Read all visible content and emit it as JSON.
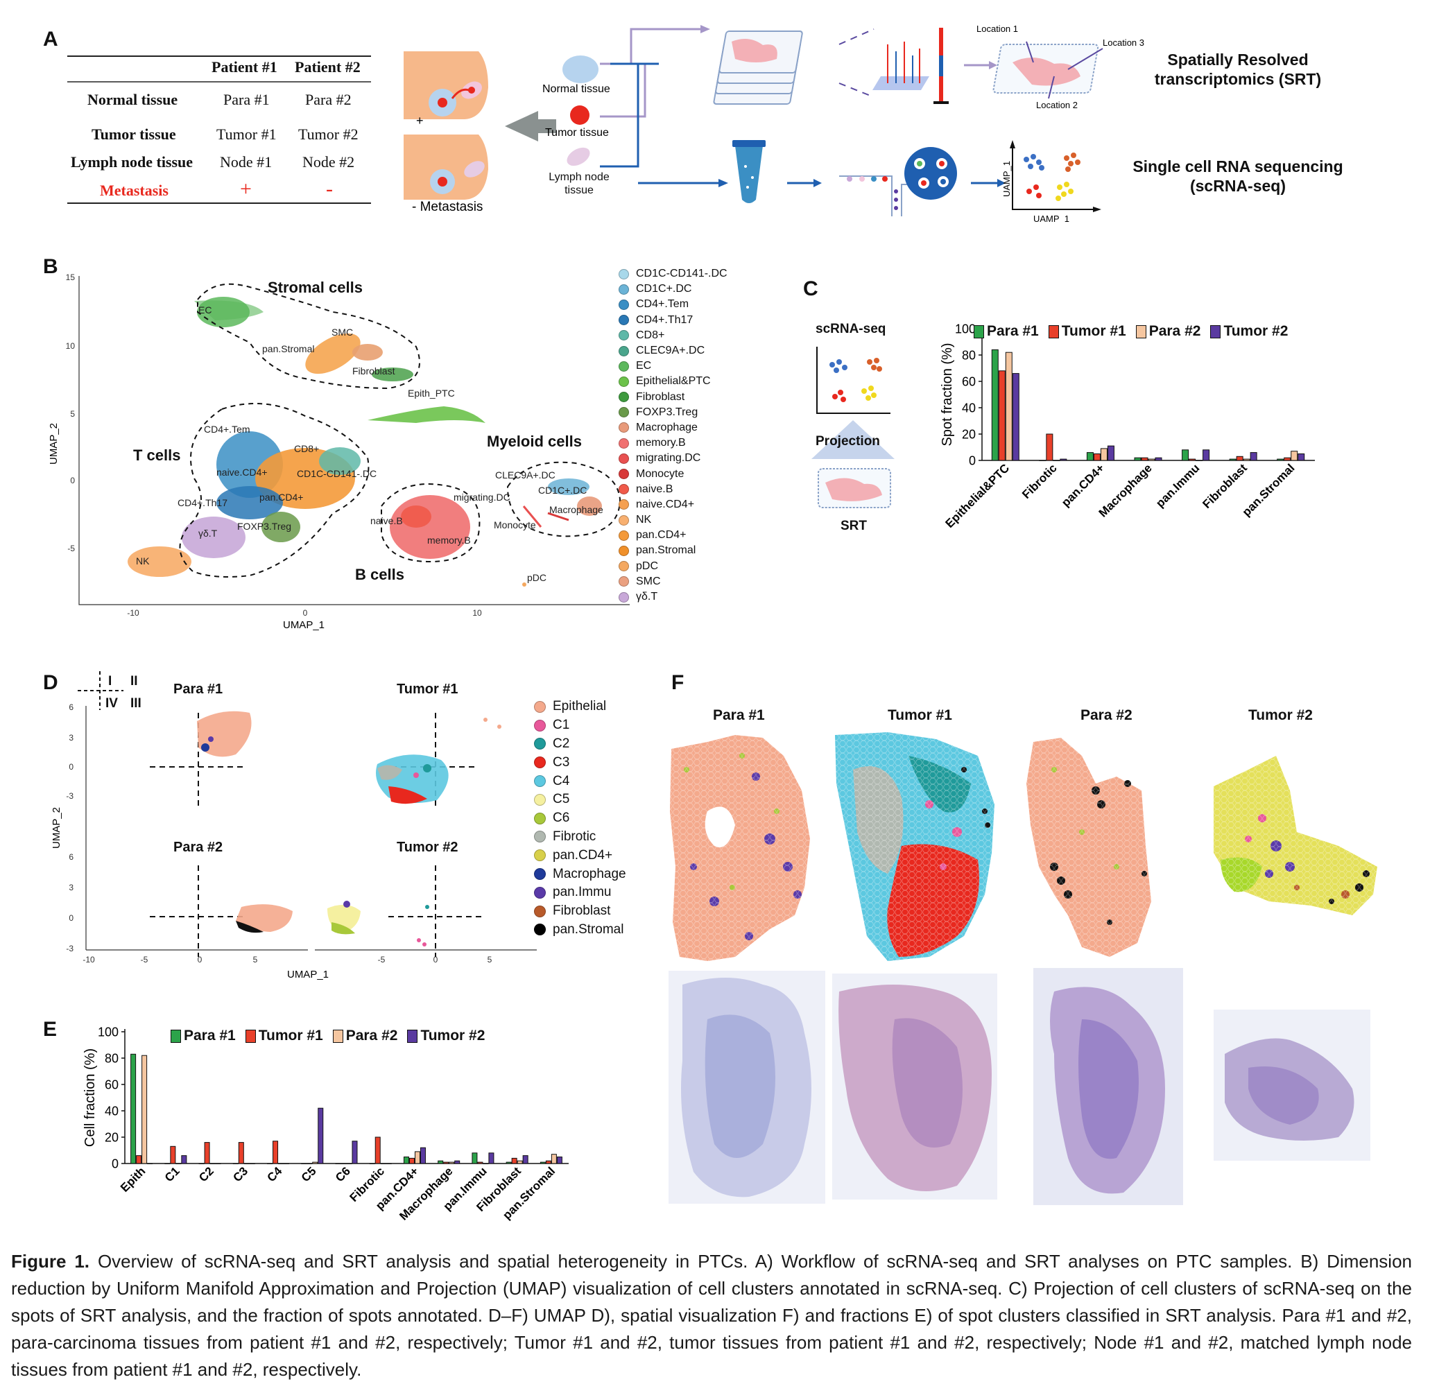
{
  "panelA": {
    "letter": "A",
    "table": {
      "headers": [
        "",
        "Patient #1",
        "Patient #2"
      ],
      "rows": [
        {
          "label": "Normal tissue",
          "p1": "Para #1",
          "p2": "Para #2"
        },
        {
          "label": "Tumor tissue",
          "p1": "Tumor #1",
          "p2": "Tumor #2"
        },
        {
          "label": "Lymph node tissue",
          "p1": "Node #1",
          "p2": "Node #2"
        },
        {
          "label": "Metastasis",
          "p1": "+",
          "p2": "-"
        }
      ]
    },
    "schematic": {
      "plus": "+",
      "minus_metastasis": "- Metastasis",
      "normal": "Normal tissue",
      "tumor": "Tumor tissue",
      "lymph": "Lymph node tissue",
      "loc1": "Location 1",
      "loc2": "Location 2",
      "loc3": "Location 3",
      "uamp1": "UAMP_1",
      "uamp1_y": "UAMP_1",
      "srt_title": "Spatially Resolved transcriptomics (SRT)",
      "sc_title": "Single cell RNA sequencing (scRNA-seq)"
    }
  },
  "panelB": {
    "letter": "B",
    "xlabel": "UMAP_1",
    "ylabel": "UMAP_2",
    "xticks": [
      "-10",
      "0",
      "10"
    ],
    "yticks": [
      "15",
      "10",
      "5",
      "0",
      "-5"
    ],
    "groups": [
      "Stromal cells",
      "T cells",
      "Myeloid cells",
      "B cells"
    ],
    "cluster_labels": [
      "EC",
      "SMC",
      "pan.Stromal",
      "Fibroblast",
      "Epith_PTC",
      "CD4+.Tem",
      "CD8+",
      "naive.CD4+",
      "CD1C-CD141-.DC",
      "CD4+.Th17",
      "pan.CD4+",
      "γδ.T",
      "FOXP3.Treg",
      "NK",
      "naive.B",
      "memory.B",
      "migrating.DC",
      "CLEC9A+.DC",
      "CD1C+.DC",
      "Macrophage",
      "Monocyte",
      "pDC"
    ],
    "legend": [
      {
        "name": "CD1C-CD141-.DC",
        "color": "#a8d8ea"
      },
      {
        "name": "CD1C+.DC",
        "color": "#6bb3d6"
      },
      {
        "name": "CD4+.Tem",
        "color": "#3b8fc4"
      },
      {
        "name": "CD4+.Th17",
        "color": "#2a78b5"
      },
      {
        "name": "CD8+",
        "color": "#5fb8a8"
      },
      {
        "name": "CLEC9A+.DC",
        "color": "#4aa58c"
      },
      {
        "name": "EC",
        "color": "#5cb85c"
      },
      {
        "name": "Epithelial&PTC",
        "color": "#6cc24a"
      },
      {
        "name": "Fibroblast",
        "color": "#3e9a3e"
      },
      {
        "name": "FOXP3.Treg",
        "color": "#6a9a4a"
      },
      {
        "name": "Macrophage",
        "color": "#e89a7a"
      },
      {
        "name": "memory.B",
        "color": "#f07070"
      },
      {
        "name": "migrating.DC",
        "color": "#e85050"
      },
      {
        "name": "Monocyte",
        "color": "#d83a3a"
      },
      {
        "name": "naive.B",
        "color": "#f05a4a"
      },
      {
        "name": "naive.CD4+",
        "color": "#f5a050"
      },
      {
        "name": "NK",
        "color": "#f8b070"
      },
      {
        "name": "pan.CD4+",
        "color": "#f49a3a"
      },
      {
        "name": "pan.Stromal",
        "color": "#f0902a"
      },
      {
        "name": "pDC",
        "color": "#f4a860"
      },
      {
        "name": "SMC",
        "color": "#eaa080"
      },
      {
        "name": "γδ.T",
        "color": "#c8a8d8"
      }
    ]
  },
  "panelC": {
    "letter": "C",
    "scrna": "scRNA-seq",
    "projection": "Projection",
    "srt": "SRT",
    "chart_data": {
      "type": "bar",
      "ylabel": "Spot fraction (%)",
      "ylim": [
        0,
        100
      ],
      "yticks": [
        0,
        20,
        40,
        60,
        80,
        100
      ],
      "categories": [
        "Epithelial&PTC",
        "Fibrotic",
        "pan.CD4+",
        "Macrophage",
        "pan.Immu",
        "Fibroblast",
        "pan.Stromal"
      ],
      "series": [
        {
          "name": "Para #1",
          "color": "#2ca34a",
          "values": [
            84,
            0,
            6,
            2,
            8,
            1,
            1
          ]
        },
        {
          "name": "Tumor #1",
          "color": "#e8402a",
          "values": [
            68,
            20,
            5,
            2,
            1,
            3,
            2
          ]
        },
        {
          "name": "Para #2",
          "color": "#f5c6a0",
          "values": [
            82,
            0,
            9,
            1,
            0,
            1,
            7
          ]
        },
        {
          "name": "Tumor #2",
          "color": "#5a3aa0",
          "values": [
            66,
            1,
            11,
            2,
            8,
            6,
            5
          ]
        }
      ]
    }
  },
  "panelD": {
    "letter": "D",
    "quad": [
      "I",
      "II",
      "IV",
      "III"
    ],
    "titles": [
      "Para #1",
      "Tumor #1",
      "Para #2",
      "Tumor #2"
    ],
    "xlabel": "UMAP_1",
    "ylabel": "UMAP_2",
    "yticks": [
      "6",
      "3",
      "0",
      "-3"
    ],
    "xticks": [
      "-10",
      "-5",
      "0",
      "5",
      "-5",
      "0",
      "5"
    ],
    "legend": [
      {
        "name": "Epithelial",
        "color": "#f4a98c"
      },
      {
        "name": "C1",
        "color": "#e8589a"
      },
      {
        "name": "C2",
        "color": "#1f9a9a"
      },
      {
        "name": "C3",
        "color": "#e8281e"
      },
      {
        "name": "C4",
        "color": "#5cc8e0"
      },
      {
        "name": "C5",
        "color": "#f5f0a0"
      },
      {
        "name": "C6",
        "color": "#a8c83a"
      },
      {
        "name": "Fibrotic",
        "color": "#b0b8b0"
      },
      {
        "name": "pan.CD4+",
        "color": "#d8d04a"
      },
      {
        "name": "Macrophage",
        "color": "#1f3a9a"
      },
      {
        "name": "pan.Immu",
        "color": "#5a3aa8"
      },
      {
        "name": "Fibroblast",
        "color": "#b85a2a"
      },
      {
        "name": "pan.Stromal",
        "color": "#000000"
      }
    ]
  },
  "panelE": {
    "letter": "E",
    "chart_data": {
      "type": "bar",
      "ylabel": "Cell fraction (%)",
      "ylim": [
        0,
        100
      ],
      "yticks": [
        0,
        20,
        40,
        60,
        80,
        100
      ],
      "categories": [
        "Epith",
        "C1",
        "C2",
        "C3",
        "C4",
        "C5",
        "C6",
        "Fibrotic",
        "pan.CD4+",
        "Macrophage",
        "pan.Immu",
        "Fibroblast",
        "pan.Stromal"
      ],
      "series": [
        {
          "name": "Para #1",
          "color": "#2ca34a",
          "values": [
            83,
            0,
            0,
            0,
            0,
            0,
            0,
            0,
            5,
            2,
            8,
            1,
            1
          ]
        },
        {
          "name": "Tumor #1",
          "color": "#e8402a",
          "values": [
            6,
            13,
            16,
            16,
            17,
            0,
            0,
            20,
            4,
            1,
            1,
            4,
            2
          ]
        },
        {
          "name": "Para #2",
          "color": "#f5c6a0",
          "values": [
            82,
            0,
            0,
            0,
            0,
            1,
            0,
            0,
            9,
            1,
            0,
            2,
            7
          ]
        },
        {
          "name": "Tumor #2",
          "color": "#5a3aa0",
          "values": [
            0,
            6,
            0,
            0,
            0,
            42,
            17,
            0,
            12,
            2,
            8,
            6,
            5
          ]
        }
      ]
    }
  },
  "panelF": {
    "letter": "F",
    "titles": [
      "Para #1",
      "Tumor #1",
      "Para #2",
      "Tumor #2"
    ]
  },
  "caption": {
    "label": "Figure 1.",
    "text": "Overview of scRNA-seq and SRT analysis and spatial heterogeneity in PTCs. A) Workflow of scRNA-seq and SRT analyses on PTC samples. B) Dimension reduction by Uniform Manifold Approximation and Projection (UMAP) visualization of cell clusters annotated in scRNA-seq. C) Projection of cell clusters of scRNA-seq on the spots of SRT analysis, and the fraction of spots annotated. D–F) UMAP D), spatial visualization F) and fractions E) of spot clusters classified in SRT analysis. Para #1 and #2, para-carcinoma tissues from patient #1 and #2, respectively; Tumor #1 and #2, tumor tissues from patient #1 and #2, respectively; Node #1 and #2, matched lymph node tissues from patient #1 and #2, respectively."
  }
}
